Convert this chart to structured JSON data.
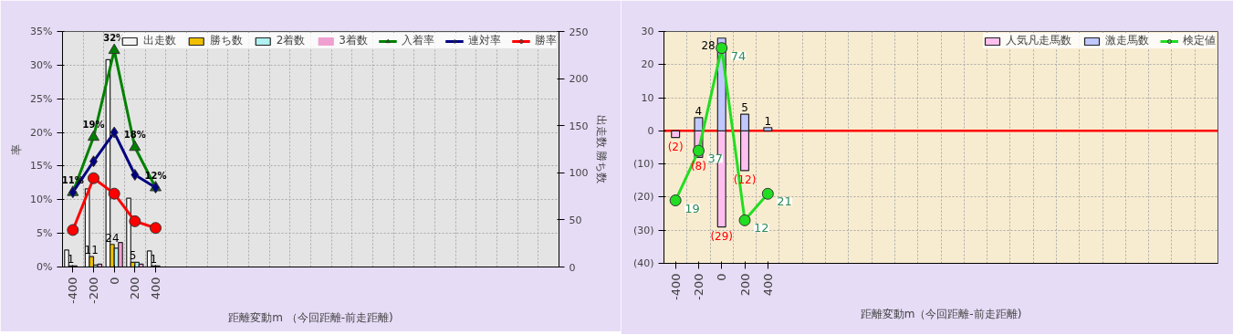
{
  "chart_data": [
    {
      "type": "bar",
      "xlabel": "距離変動m （今回距離-前走距離)",
      "ylabel": "率",
      "y2label": "出走数 勝ち数",
      "legend": "top right",
      "grid": true,
      "categories": [
        "-400",
        "-200",
        "0",
        "200",
        "400",
        null,
        null,
        null,
        null,
        null,
        null,
        null,
        null,
        null,
        null,
        null,
        null,
        null,
        null,
        null,
        null,
        null,
        null,
        null
      ],
      "ylim": [
        0,
        35
      ],
      "yticks": [
        {
          "value": 0,
          "label": "0%"
        },
        {
          "value": 5,
          "label": "5%"
        },
        {
          "value": 10,
          "label": "10%"
        },
        {
          "value": 15,
          "label": "15%"
        },
        {
          "value": 20,
          "label": "20%"
        },
        {
          "value": 25,
          "label": "25%"
        },
        {
          "value": 30,
          "label": "30%"
        },
        {
          "value": 35,
          "label": "35%"
        }
      ],
      "y2lim": [
        0,
        250
      ],
      "y2ticks": [
        0,
        50,
        100,
        150,
        200,
        250
      ],
      "series": [
        {
          "name": "出走数",
          "type": "bar",
          "axis": "y2",
          "color": "#f4f4f4",
          "values": [
            18,
            83,
            220,
            73,
            17,
            null,
            null,
            null,
            null,
            null,
            null,
            null,
            null,
            null,
            null,
            null,
            null,
            null,
            null,
            null,
            null,
            null,
            null,
            null
          ]
        },
        {
          "name": "勝ち数",
          "type": "bar",
          "axis": "y2",
          "color": "#f0c000",
          "values": [
            1,
            11,
            24,
            5,
            1,
            null,
            null,
            null,
            null,
            null,
            null,
            null,
            null,
            null,
            null,
            null,
            null,
            null,
            null,
            null,
            null,
            null,
            null,
            null
          ],
          "value_labels": [
            "1",
            "11",
            "24",
            "5",
            "1",
            null,
            null,
            null,
            null,
            null,
            null,
            null,
            null,
            null,
            null,
            null,
            null,
            null,
            null,
            null,
            null,
            null,
            null,
            null
          ]
        },
        {
          "name": "2着数",
          "type": "bar",
          "axis": "y2",
          "color": "#b0f0f0",
          "values": [
            1,
            2,
            20,
            5,
            1,
            null,
            null,
            null,
            null,
            null,
            null,
            null,
            null,
            null,
            null,
            null,
            null,
            null,
            null,
            null,
            null,
            null,
            null,
            null
          ]
        },
        {
          "name": "3着数",
          "type": "bar",
          "axis": "y2",
          "color": "#f0a0d0",
          "values": [
            0,
            3,
            26,
            3,
            0,
            null,
            null,
            null,
            null,
            null,
            null,
            null,
            null,
            null,
            null,
            null,
            null,
            null,
            null,
            null,
            null,
            null,
            null,
            null
          ]
        },
        {
          "name": "入着率",
          "type": "line",
          "marker": "triangle",
          "color": "#008000",
          "values": [
            11.1,
            19.3,
            32.2,
            17.8,
            11.8,
            null,
            null,
            null,
            null,
            null,
            null,
            null,
            null,
            null,
            null,
            null,
            null,
            null,
            null,
            null,
            null,
            null,
            null,
            null
          ],
          "value_labels": [
            "11%",
            "19%",
            "32%",
            "18%",
            "12%",
            null,
            null,
            null,
            null,
            null,
            null,
            null,
            null,
            null,
            null,
            null,
            null,
            null,
            null,
            null,
            null,
            null,
            null,
            null
          ]
        },
        {
          "name": "連対率",
          "type": "line",
          "marker": "diamond",
          "color": "#000080",
          "values": [
            11.1,
            15.7,
            20,
            13.7,
            11.8,
            null,
            null,
            null,
            null,
            null,
            null,
            null,
            null,
            null,
            null,
            null,
            null,
            null,
            null,
            null,
            null,
            null,
            null,
            null
          ]
        },
        {
          "name": "勝率",
          "type": "line",
          "marker": "circle",
          "color": "#ff0000",
          "values": [
            5.5,
            13.2,
            10.9,
            6.8,
            5.8,
            null,
            null,
            null,
            null,
            null,
            null,
            null,
            null,
            null,
            null,
            null,
            null,
            null,
            null,
            null,
            null,
            null,
            null,
            null
          ]
        }
      ]
    },
    {
      "type": "bar",
      "stacked": true,
      "xlabel": "距離変動m（今回距離-前走距離)",
      "legend": "top right",
      "grid": true,
      "categories": [
        "-400",
        "-200",
        "0",
        "200",
        "400",
        null,
        null,
        null,
        null,
        null,
        null,
        null,
        null,
        null,
        null,
        null,
        null,
        null,
        null,
        null,
        null,
        null,
        null,
        null
      ],
      "ylim": [
        -40,
        30
      ],
      "yticks": [
        {
          "value": -40,
          "label": "(40)"
        },
        {
          "value": -30,
          "label": "(30)"
        },
        {
          "value": -20,
          "label": "(20)"
        },
        {
          "value": -10,
          "label": "(10)"
        },
        0,
        10,
        20,
        30
      ],
      "ref_lines": [
        {
          "axis": "y",
          "value": 0,
          "color": "#ff0000"
        }
      ],
      "series": [
        {
          "name": "人気凡走馬数",
          "type": "bar",
          "color": "#ffc0f0",
          "values": [
            -2,
            -8,
            -29,
            -12,
            null,
            null,
            null,
            null,
            null,
            null,
            null,
            null,
            null,
            null,
            null,
            null,
            null,
            null,
            null,
            null,
            null,
            null,
            null,
            null
          ],
          "value_labels": [
            "(2)",
            "(8)",
            "(29)",
            "(12)",
            null,
            null,
            null,
            null,
            null,
            null,
            null,
            null,
            null,
            null,
            null,
            null,
            null,
            null,
            null,
            null,
            null,
            null,
            null,
            null
          ]
        },
        {
          "name": "激走馬数",
          "type": "bar",
          "color": "#c0c8ff",
          "values": [
            null,
            4,
            28,
            5,
            1,
            null,
            null,
            null,
            null,
            null,
            null,
            null,
            null,
            null,
            null,
            null,
            null,
            null,
            null,
            null,
            null,
            null,
            null,
            null
          ],
          "value_labels": [
            null,
            "4",
            "28",
            "5",
            "1",
            null,
            null,
            null,
            null,
            null,
            null,
            null,
            null,
            null,
            null,
            null,
            null,
            null,
            null,
            null,
            null,
            null,
            null,
            null
          ]
        },
        {
          "name": "検定値",
          "type": "line",
          "marker": "circle",
          "color": "#22dd22",
          "values": [
            -21,
            -6,
            25,
            -27,
            -19,
            null,
            null,
            null,
            null,
            null,
            null,
            null,
            null,
            null,
            null,
            null,
            null,
            null,
            null,
            null,
            null,
            null,
            null,
            null
          ]
        }
      ],
      "annotations": [
        {
          "text": "19",
          "x": "-400",
          "y": -21
        },
        {
          "text": "37",
          "x": "-200",
          "y": -6
        },
        {
          "text": "74",
          "x": "0",
          "y": 25
        },
        {
          "text": "12",
          "x": "200",
          "y": -27
        },
        {
          "text": "21",
          "x": "400",
          "y": -19
        }
      ]
    }
  ]
}
